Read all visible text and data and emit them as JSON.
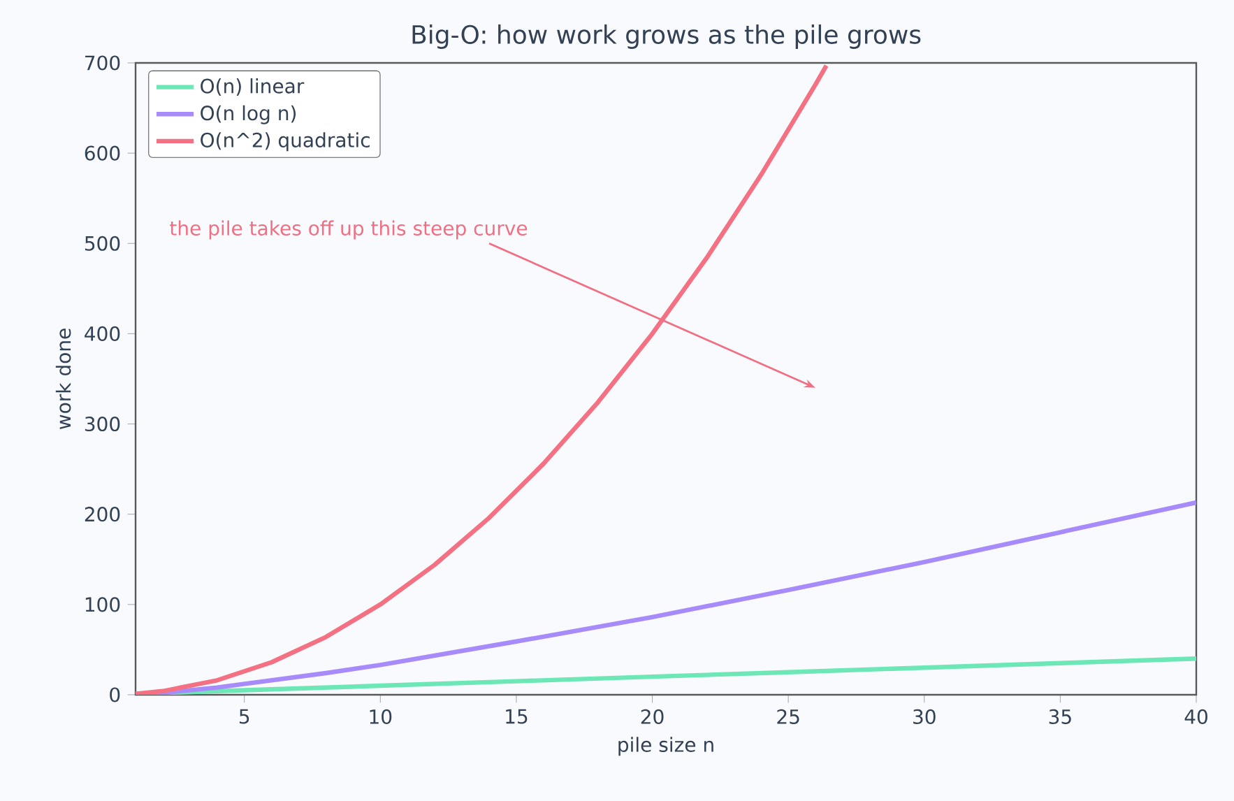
{
  "chart_data": {
    "type": "line",
    "title": "Big-O: how work grows as the pile grows",
    "xlabel": "pile size  n",
    "ylabel": "work done",
    "xlim": [
      1,
      40
    ],
    "ylim": [
      0,
      700
    ],
    "xticks": [
      5,
      10,
      15,
      20,
      25,
      30,
      35,
      40
    ],
    "yticks": [
      0,
      100,
      200,
      300,
      400,
      500,
      600,
      700
    ],
    "grid": false,
    "legend": "top left",
    "marker": "none",
    "line_style": "solid",
    "annotations": [
      "the pile takes off up this steep curve"
    ],
    "series": [
      {
        "name": "O(n)  linear",
        "color": "#6ee7b7",
        "x": [
          1,
          5,
          10,
          15,
          20,
          25,
          30,
          35,
          40
        ],
        "values": [
          1,
          5,
          10,
          15,
          20,
          25,
          30,
          35,
          40
        ]
      },
      {
        "name": "O(n log n)",
        "color": "#a78bfa",
        "x": [
          1,
          2,
          4,
          6,
          8,
          10,
          15,
          20,
          25,
          30,
          35,
          40
        ],
        "values": [
          0,
          2,
          8,
          16,
          24,
          33,
          59,
          86,
          116,
          147,
          180,
          213
        ]
      },
      {
        "name": "O(n^2)  quadratic",
        "color": "#f47183",
        "x": [
          1,
          2,
          4,
          6,
          8,
          10,
          12,
          14,
          16,
          18,
          20,
          22,
          24,
          26,
          26.4
        ],
        "values": [
          1,
          4,
          16,
          36,
          64,
          100,
          144,
          196,
          256,
          324,
          400,
          484,
          576,
          676,
          697
        ]
      }
    ]
  }
}
